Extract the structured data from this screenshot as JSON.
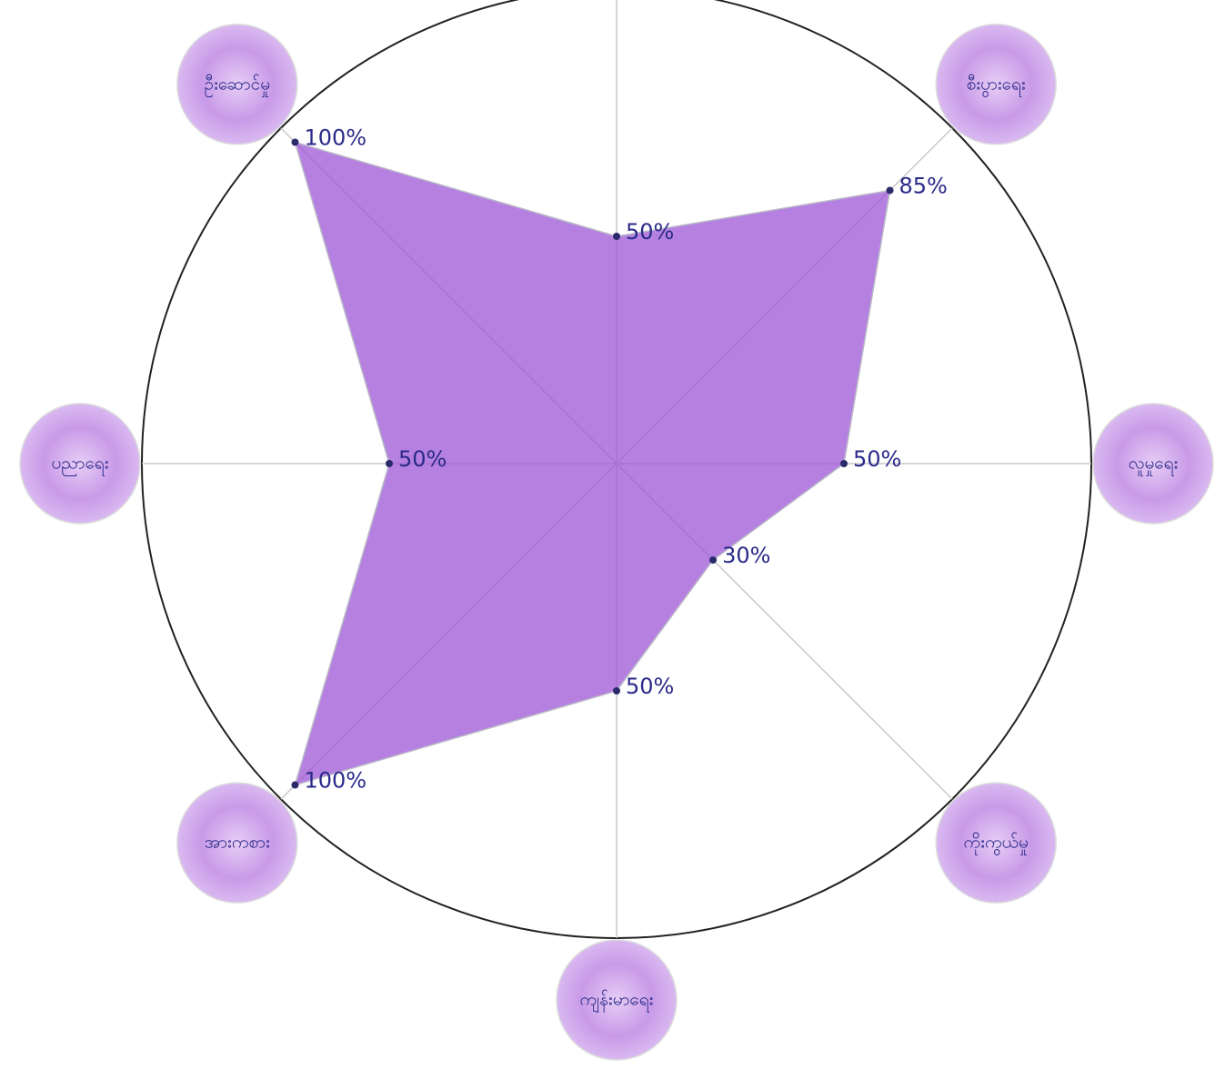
{
  "chart_data": {
    "type": "radar",
    "categories": [
      null,
      "စီးပွားရေး",
      "လူမှုရေး",
      "ကိုးကွယ်မှု",
      "ကျန်းမာရေး",
      "အားကစား",
      "ပညာရေး",
      "ဦးဆောင်မှု"
    ],
    "values": [
      50,
      85,
      50,
      30,
      50,
      100,
      50,
      100
    ],
    "value_labels": [
      "50%",
      "85%",
      "50%",
      "30%",
      "50%",
      "100%",
      "50%",
      "100%"
    ],
    "color": "#9d55d6"
  }
}
